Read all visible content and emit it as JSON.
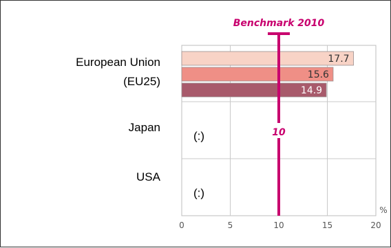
{
  "chart_data": {
    "type": "bar",
    "orientation": "horizontal",
    "categories": [
      "European Union\n(EU25)",
      "Japan",
      "USA"
    ],
    "category_lines": [
      [
        "European Union",
        "(EU25)"
      ],
      [
        "Japan"
      ],
      [
        "USA"
      ]
    ],
    "series": [
      {
        "values": [
          17.7,
          null,
          null
        ],
        "color": "#f8d3c6",
        "label_color": "#333333"
      },
      {
        "values": [
          15.6,
          null,
          null
        ],
        "color": "#ef8f86",
        "label_color": "#333333"
      },
      {
        "values": [
          14.9,
          null,
          null
        ],
        "color": "#a85a6b",
        "label_color": "#ffffff"
      }
    ],
    "missing_label": "(:)",
    "missing_categories": [
      1,
      2
    ],
    "xlim": [
      0,
      20
    ],
    "xticks": [
      0,
      5,
      10,
      15,
      20
    ],
    "x_unit": "%",
    "grid": true,
    "benchmark": {
      "label": "Benchmark 2010",
      "value": 10,
      "value_label": "10",
      "color": "#c8006e"
    }
  }
}
